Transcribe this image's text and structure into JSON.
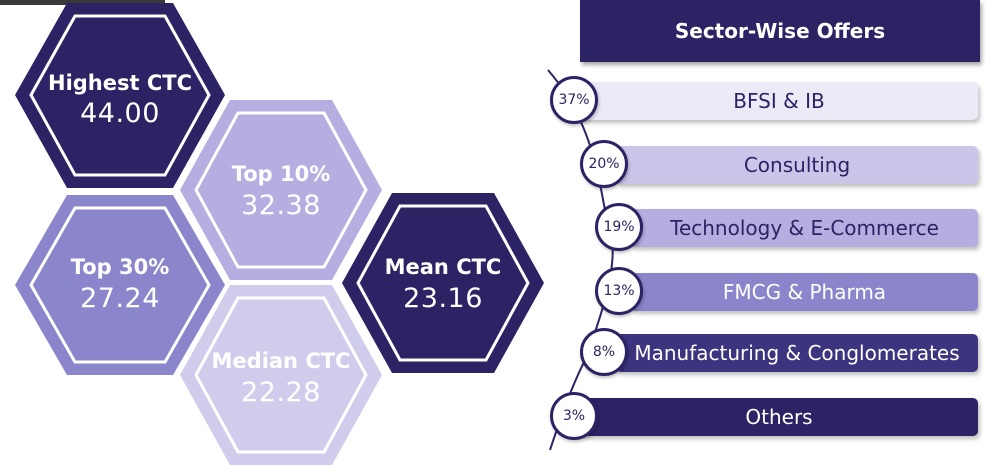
{
  "stats": [
    {
      "label": "Highest CTC",
      "value": "44.00",
      "fill": "#2c2365"
    },
    {
      "label": "Top 10%",
      "value": "32.38",
      "fill": "#b6aee0"
    },
    {
      "label": "Top 30%",
      "value": "27.24",
      "fill": "#8b86cc"
    },
    {
      "label": "Mean CTC",
      "value": "23.16",
      "fill": "#2c2365"
    },
    {
      "label": "Median CTC",
      "value": "22.28",
      "fill": "#d0cdec"
    }
  ],
  "sector": {
    "title": "Sector-Wise Offers",
    "items": [
      {
        "pct": "37%",
        "name": "BFSI & IB",
        "bg": "#edeaf8",
        "fg": "#2c2365"
      },
      {
        "pct": "20%",
        "name": "Consulting",
        "bg": "#cac6ea",
        "fg": "#2c2365"
      },
      {
        "pct": "19%",
        "name": "Technology & E-Commerce",
        "bg": "#b6aee0",
        "fg": "#2c2365"
      },
      {
        "pct": "13%",
        "name": "FMCG & Pharma",
        "bg": "#8b86cc",
        "fg": "#ffffff"
      },
      {
        "pct": "8%",
        "name": "Manufacturing & Conglomerates",
        "bg": "#3d3480",
        "fg": "#ffffff"
      },
      {
        "pct": "3%",
        "name": "Others",
        "bg": "#2c2365",
        "fg": "#ffffff"
      }
    ]
  }
}
